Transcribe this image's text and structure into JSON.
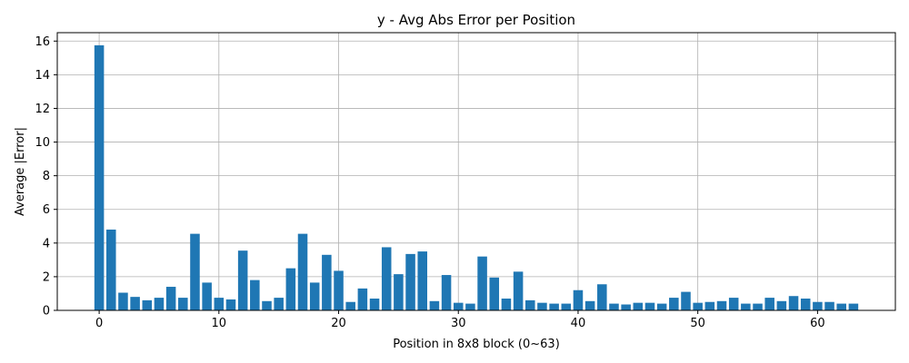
{
  "chart_data": {
    "type": "bar",
    "title": "y - Avg Abs Error per Position",
    "xlabel": "Position in 8x8 block (0~63)",
    "ylabel": "Average |Error|",
    "xlim": [
      -3.5,
      66.5
    ],
    "ylim": [
      0,
      16.5
    ],
    "xticks": [
      0,
      10,
      20,
      30,
      40,
      50,
      60
    ],
    "yticks": [
      0,
      2,
      4,
      6,
      8,
      10,
      12,
      14,
      16
    ],
    "grid": true,
    "bar_color": "#1f77b4",
    "x": [
      0,
      1,
      2,
      3,
      4,
      5,
      6,
      7,
      8,
      9,
      10,
      11,
      12,
      13,
      14,
      15,
      16,
      17,
      18,
      19,
      20,
      21,
      22,
      23,
      24,
      25,
      26,
      27,
      28,
      29,
      30,
      31,
      32,
      33,
      34,
      35,
      36,
      37,
      38,
      39,
      40,
      41,
      42,
      43,
      44,
      45,
      46,
      47,
      48,
      49,
      50,
      51,
      52,
      53,
      54,
      55,
      56,
      57,
      58,
      59,
      60,
      61,
      62,
      63
    ],
    "values": [
      15.75,
      4.8,
      1.05,
      0.8,
      0.6,
      0.75,
      1.4,
      0.75,
      4.55,
      1.65,
      0.75,
      0.65,
      3.55,
      1.8,
      0.55,
      0.75,
      2.5,
      4.55,
      1.65,
      3.3,
      2.35,
      0.5,
      1.3,
      0.7,
      3.75,
      2.15,
      3.35,
      3.5,
      0.55,
      2.1,
      0.45,
      0.4,
      3.2,
      1.95,
      0.7,
      2.3,
      0.6,
      0.45,
      0.4,
      0.4,
      1.2,
      0.55,
      1.55,
      0.4,
      0.35,
      0.45,
      0.45,
      0.4,
      0.75,
      1.1,
      0.45,
      0.5,
      0.55,
      0.75,
      0.4,
      0.4,
      0.75,
      0.55,
      0.85,
      0.7,
      0.5,
      0.5,
      0.4,
      0.4
    ]
  }
}
